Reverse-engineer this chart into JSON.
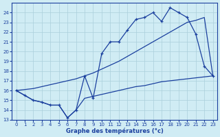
{
  "line1_x": [
    0,
    1,
    2,
    3,
    4,
    5,
    6,
    7,
    8,
    9,
    10,
    11,
    12,
    13,
    14,
    15,
    16,
    17,
    18,
    19,
    20,
    21,
    22,
    23
  ],
  "line1_y": [
    16.0,
    15.5,
    15.0,
    14.8,
    14.5,
    14.5,
    13.2,
    14.0,
    17.5,
    15.2,
    19.8,
    21.0,
    21.0,
    22.2,
    23.3,
    23.5,
    24.0,
    23.1,
    24.5,
    24.0,
    23.5,
    21.8,
    18.5,
    17.5
  ],
  "line2_x": [
    0,
    1,
    2,
    3,
    4,
    5,
    6,
    7,
    8,
    9,
    10,
    11,
    12,
    13,
    14,
    15,
    16,
    17,
    18,
    19,
    20,
    21,
    22,
    23
  ],
  "line2_y": [
    16.0,
    16.1,
    16.2,
    16.4,
    16.6,
    16.8,
    17.0,
    17.2,
    17.5,
    17.8,
    18.2,
    18.6,
    19.0,
    19.5,
    20.0,
    20.5,
    21.0,
    21.5,
    22.0,
    22.5,
    23.0,
    23.2,
    23.5,
    17.5
  ],
  "line3_x": [
    0,
    1,
    2,
    3,
    4,
    5,
    6,
    7,
    8,
    9,
    10,
    11,
    12,
    13,
    14,
    15,
    16,
    17,
    18,
    19,
    20,
    21,
    22,
    23
  ],
  "line3_y": [
    16.0,
    15.5,
    15.0,
    14.8,
    14.5,
    14.5,
    13.2,
    14.0,
    15.2,
    15.4,
    15.6,
    15.8,
    16.0,
    16.2,
    16.4,
    16.5,
    16.7,
    16.9,
    17.0,
    17.1,
    17.2,
    17.3,
    17.4,
    17.5
  ],
  "line_color": "#1a3f9e",
  "marker": "+",
  "bg_color": "#d0ecf4",
  "grid_color": "#aacfdb",
  "axis_color": "#1a3f9e",
  "xlabel": "Graphe des températures (°c)",
  "xlim": [
    -0.5,
    23.5
  ],
  "ylim": [
    13,
    25
  ],
  "yticks": [
    13,
    14,
    15,
    16,
    17,
    18,
    19,
    20,
    21,
    22,
    23,
    24
  ],
  "xticks": [
    0,
    1,
    2,
    3,
    4,
    5,
    6,
    7,
    8,
    9,
    10,
    11,
    12,
    13,
    14,
    15,
    16,
    17,
    18,
    19,
    20,
    21,
    22,
    23
  ]
}
